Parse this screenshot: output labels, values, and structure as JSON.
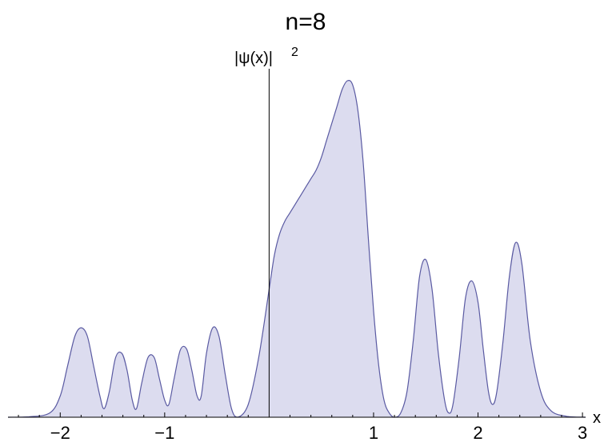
{
  "chart_data": {
    "type": "area",
    "title": "n=8",
    "xlabel": "x",
    "ylabel": "|ψ(x)|",
    "ylabel_superscript": "2",
    "xlim": [
      -2.5,
      3.03
    ],
    "ylim": [
      0,
      0.79
    ],
    "x_ticks": [
      -2,
      -1,
      1,
      2,
      3
    ],
    "x_tick_labels": [
      "−2",
      "−1",
      "1",
      "2",
      "3"
    ],
    "y_ticks_shown": false,
    "fill_color": "#dcdcef",
    "line_color": "#5a5aa2",
    "series": [
      {
        "x": [
          -2.5,
          -2.3,
          -2.1,
          -2.0,
          -1.93,
          -1.86,
          -1.8,
          -1.74,
          -1.68,
          -1.62,
          -1.58,
          -1.53,
          -1.47,
          -1.41,
          -1.36,
          -1.31,
          -1.27,
          -1.22,
          -1.16,
          -1.1,
          -1.05,
          -1.0,
          -0.96,
          -0.91,
          -0.85,
          -0.79,
          -0.74,
          -0.69,
          -0.65,
          -0.6,
          -0.54,
          -0.48,
          -0.42,
          -0.36,
          -0.3,
          -0.2,
          -0.1,
          0.0,
          0.05,
          0.1,
          0.15,
          0.2,
          0.25,
          0.3,
          0.35,
          0.4,
          0.45,
          0.5,
          0.55,
          0.6,
          0.65,
          0.7,
          0.75,
          0.8,
          0.85,
          0.9,
          0.95,
          1.0,
          1.05,
          1.1,
          1.15,
          1.2,
          1.26,
          1.32,
          1.38,
          1.44,
          1.5,
          1.56,
          1.62,
          1.68,
          1.72,
          1.76,
          1.82,
          1.88,
          1.94,
          2.0,
          2.05,
          2.1,
          2.14,
          2.18,
          2.24,
          2.3,
          2.36,
          2.42,
          2.5,
          2.6,
          2.7,
          2.85,
          3.03
        ],
        "y": [
          0.0,
          0.001,
          0.01,
          0.05,
          0.12,
          0.19,
          0.21,
          0.19,
          0.12,
          0.05,
          0.02,
          0.06,
          0.14,
          0.15,
          0.11,
          0.04,
          0.02,
          0.08,
          0.14,
          0.14,
          0.09,
          0.04,
          0.03,
          0.09,
          0.158,
          0.16,
          0.11,
          0.05,
          0.05,
          0.15,
          0.21,
          0.19,
          0.1,
          0.02,
          0.0,
          0.03,
          0.14,
          0.3,
          0.38,
          0.43,
          0.46,
          0.48,
          0.5,
          0.52,
          0.54,
          0.56,
          0.58,
          0.61,
          0.65,
          0.69,
          0.73,
          0.77,
          0.79,
          0.78,
          0.72,
          0.6,
          0.42,
          0.25,
          0.12,
          0.04,
          0.01,
          0.0,
          0.01,
          0.06,
          0.18,
          0.33,
          0.37,
          0.3,
          0.15,
          0.04,
          0.01,
          0.03,
          0.14,
          0.28,
          0.32,
          0.27,
          0.16,
          0.06,
          0.03,
          0.06,
          0.18,
          0.33,
          0.41,
          0.36,
          0.18,
          0.06,
          0.015,
          0.002,
          0.0
        ]
      }
    ]
  }
}
